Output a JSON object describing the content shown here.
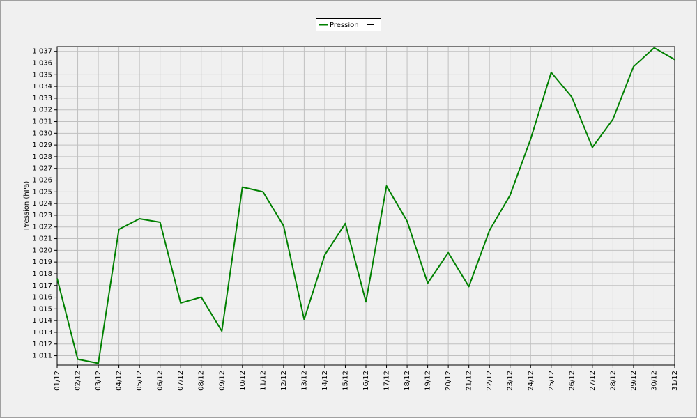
{
  "chart_data": {
    "type": "line",
    "y_label": "Pression (hPa)",
    "categories": [
      "01/12",
      "02/12",
      "03/12",
      "04/12",
      "05/12",
      "06/12",
      "07/12",
      "08/12",
      "09/12",
      "10/12",
      "11/12",
      "12/12",
      "13/12",
      "14/12",
      "15/12",
      "16/12",
      "17/12",
      "18/12",
      "19/12",
      "20/12",
      "21/12",
      "22/12",
      "23/12",
      "24/12",
      "25/12",
      "26/12",
      "27/12",
      "28/12",
      "29/12",
      "30/12",
      "31/12"
    ],
    "series": [
      {
        "name": "Pression",
        "color": "#008000",
        "values": [
          1017.6,
          1010.7,
          1010.35,
          1021.8,
          1022.7,
          1022.4,
          1015.5,
          1016.0,
          1013.1,
          1025.4,
          1025.0,
          1022.1,
          1014.1,
          1019.6,
          1022.3,
          1015.6,
          1025.5,
          1022.5,
          1017.2,
          1019.8,
          1016.9,
          1021.7,
          1024.7,
          1029.5,
          1035.2,
          1033.1,
          1028.8,
          1031.2,
          1035.7,
          1037.3,
          1036.3
        ]
      }
    ],
    "ylim": [
      1010.2,
      1037.4
    ],
    "yticks": [
      {
        "value": 1011,
        "label": "1 011"
      },
      {
        "value": 1012,
        "label": "1 012"
      },
      {
        "value": 1013,
        "label": "1 013"
      },
      {
        "value": 1014,
        "label": "1 014"
      },
      {
        "value": 1015,
        "label": "1 015"
      },
      {
        "value": 1016,
        "label": "1 016"
      },
      {
        "value": 1017,
        "label": "1 017"
      },
      {
        "value": 1018,
        "label": "1 018"
      },
      {
        "value": 1019,
        "label": "1 019"
      },
      {
        "value": 1020,
        "label": "1 020"
      },
      {
        "value": 1021,
        "label": "1 021"
      },
      {
        "value": 1022,
        "label": "1 022"
      },
      {
        "value": 1023,
        "label": "1 023"
      },
      {
        "value": 1024,
        "label": "1 024"
      },
      {
        "value": 1025,
        "label": "1 025"
      },
      {
        "value": 1026,
        "label": "1 026"
      },
      {
        "value": 1027,
        "label": "1 027"
      },
      {
        "value": 1028,
        "label": "1 028"
      },
      {
        "value": 1029,
        "label": "1 029"
      },
      {
        "value": 1030,
        "label": "1 030"
      },
      {
        "value": 1031,
        "label": "1 031"
      },
      {
        "value": 1032,
        "label": "1 032"
      },
      {
        "value": 1033,
        "label": "1 033"
      },
      {
        "value": 1034,
        "label": "1 034"
      },
      {
        "value": 1035,
        "label": "1 035"
      },
      {
        "value": 1036,
        "label": "1 036"
      },
      {
        "value": 1037,
        "label": "1 037"
      }
    ],
    "grid": true
  }
}
